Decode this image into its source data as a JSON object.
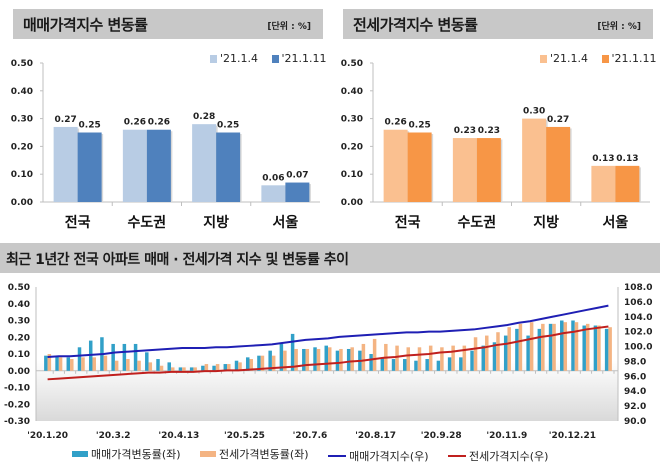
{
  "chart_data": [
    {
      "type": "bar",
      "title": "매매가격지수 변동률",
      "unit_label": "[단위 : %]",
      "categories": [
        "전국",
        "수도권",
        "지방",
        "서울"
      ],
      "series": [
        {
          "name": "'21.1.4",
          "color": "#b8cce4",
          "values": [
            0.27,
            0.26,
            0.28,
            0.06
          ]
        },
        {
          "name": "'21.1.11",
          "color": "#4f81bd",
          "values": [
            0.25,
            0.26,
            0.25,
            0.07
          ]
        }
      ],
      "yticks": [
        "0.00",
        "0.10",
        "0.20",
        "0.30",
        "0.40",
        "0.50"
      ],
      "ylim": [
        0,
        0.5
      ],
      "legend_position": "top-right"
    },
    {
      "type": "bar",
      "title": "전세가격지수 변동률",
      "unit_label": "[단위 : %]",
      "categories": [
        "전국",
        "수도권",
        "지방",
        "서울"
      ],
      "series": [
        {
          "name": "'21.1.4",
          "color": "#fac090",
          "values": [
            0.26,
            0.23,
            0.3,
            0.13
          ]
        },
        {
          "name": "'21.1.11",
          "color": "#f79646",
          "values": [
            0.25,
            0.23,
            0.27,
            0.13
          ]
        }
      ],
      "yticks": [
        "0.00",
        "0.10",
        "0.20",
        "0.30",
        "0.40",
        "0.50"
      ],
      "ylim": [
        0,
        0.5
      ],
      "legend_position": "top-right"
    },
    {
      "type": "bar+line",
      "title": "최근 1년간 전국 아파트 매매 · 전세가격 지수 및 변동률 추이",
      "xticks": [
        "'20.1.20",
        "'20.3.2",
        "'20.4.13",
        "'20.5.25",
        "'20.7.6",
        "'20.8.17",
        "'20.9.28",
        "'20.11.9",
        "'20.12.21"
      ],
      "yticks_left": [
        "-0.30",
        "-0.20",
        "-0.10",
        "0.00",
        "0.10",
        "0.20",
        "0.30",
        "0.40",
        "0.50"
      ],
      "yticks_right": [
        "90.0",
        "92.0",
        "94.0",
        "96.0",
        "98.0",
        "100.0",
        "102.0",
        "104.0",
        "106.0",
        "108.0"
      ],
      "ylim_left": [
        -0.3,
        0.5
      ],
      "ylim_right": [
        90,
        108
      ],
      "legend_position": "bottom",
      "series": [
        {
          "name": "매매가격변동률(좌)",
          "kind": "bar",
          "axis": "left",
          "color": "#31a0c8",
          "values": [
            0.09,
            0.09,
            0.08,
            0.14,
            0.18,
            0.2,
            0.16,
            0.16,
            0.16,
            0.11,
            0.07,
            0.05,
            0.02,
            0.02,
            0.03,
            0.03,
            0.04,
            0.06,
            0.08,
            0.09,
            0.12,
            0.16,
            0.22,
            0.13,
            0.14,
            0.15,
            0.12,
            0.13,
            0.12,
            0.1,
            0.08,
            0.07,
            0.07,
            0.06,
            0.07,
            0.06,
            0.08,
            0.08,
            0.12,
            0.15,
            0.17,
            0.21,
            0.25,
            0.21,
            0.25,
            0.28,
            0.3,
            0.3,
            0.27,
            0.27,
            0.25
          ]
        },
        {
          "name": "전세가격변동률(좌)",
          "kind": "bar",
          "axis": "left",
          "color": "#f4b483",
          "values": [
            0.1,
            0.08,
            0.07,
            0.08,
            0.08,
            0.09,
            0.06,
            0.07,
            0.06,
            0.05,
            0.03,
            0.02,
            0.02,
            0.02,
            0.04,
            0.04,
            0.04,
            0.05,
            0.07,
            0.09,
            0.09,
            0.12,
            0.13,
            0.13,
            0.13,
            0.14,
            0.13,
            0.14,
            0.16,
            0.19,
            0.16,
            0.15,
            0.14,
            0.14,
            0.15,
            0.14,
            0.15,
            0.15,
            0.2,
            0.21,
            0.23,
            0.26,
            0.28,
            0.29,
            0.28,
            0.28,
            0.29,
            0.29,
            0.28,
            0.27,
            0.26
          ]
        },
        {
          "name": "매매가격지수(우)",
          "kind": "line",
          "axis": "right",
          "color": "#1f1fb4",
          "values": [
            98.6,
            98.7,
            98.7,
            98.8,
            98.9,
            99.0,
            99.2,
            99.3,
            99.4,
            99.5,
            99.6,
            99.7,
            99.8,
            99.8,
            99.8,
            99.9,
            99.9,
            100.0,
            100.1,
            100.2,
            100.3,
            100.5,
            100.7,
            100.9,
            101.0,
            101.1,
            101.3,
            101.4,
            101.5,
            101.6,
            101.7,
            101.8,
            101.9,
            101.9,
            102.0,
            102.0,
            102.1,
            102.2,
            102.3,
            102.5,
            102.7,
            102.9,
            103.2,
            103.4,
            103.7,
            104.0,
            104.3,
            104.6,
            104.9,
            105.2,
            105.5
          ]
        },
        {
          "name": "전세가격지수(우)",
          "kind": "line",
          "axis": "right",
          "color": "#c0201e",
          "values": [
            95.6,
            95.7,
            95.8,
            95.9,
            96.0,
            96.1,
            96.2,
            96.3,
            96.4,
            96.5,
            96.5,
            96.6,
            96.6,
            96.6,
            96.7,
            96.7,
            96.8,
            96.8,
            96.9,
            97.0,
            97.1,
            97.2,
            97.3,
            97.5,
            97.6,
            97.7,
            97.8,
            98.0,
            98.1,
            98.3,
            98.5,
            98.6,
            98.8,
            98.9,
            99.0,
            99.2,
            99.3,
            99.5,
            99.7,
            99.9,
            100.2,
            100.4,
            100.7,
            101.0,
            101.3,
            101.5,
            101.8,
            102.0,
            102.3,
            102.5,
            102.7
          ]
        }
      ]
    }
  ]
}
